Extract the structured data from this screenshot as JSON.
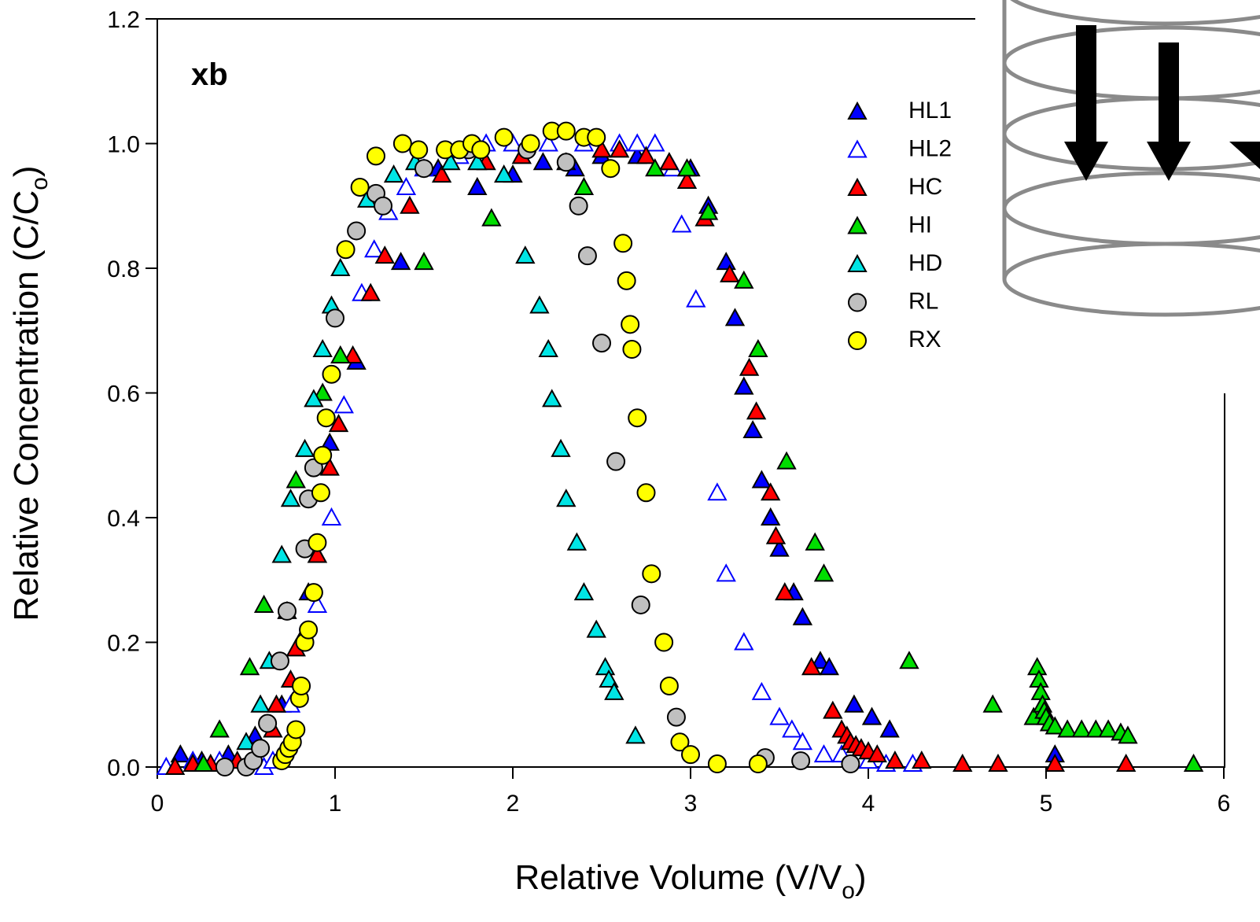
{
  "chart_data": {
    "type": "scatter",
    "annotation": "xb",
    "x_label": [
      "Relative Volume (V/V",
      "o",
      ")"
    ],
    "y_label": [
      "Relative Concentration (C/C",
      "o",
      ")"
    ],
    "xlim": [
      0,
      6
    ],
    "ylim": [
      0,
      1.2
    ],
    "xticks": [
      0,
      1,
      2,
      3,
      4,
      5,
      6
    ],
    "yticks": [
      {
        "value": 0,
        "label": "0.0"
      },
      {
        "value": 0.2,
        "label": "0.2"
      },
      {
        "value": 0.4,
        "label": "0.4"
      },
      {
        "value": 0.6,
        "label": "0.6"
      },
      {
        "value": 0.8,
        "label": "0.8"
      },
      {
        "value": 1.0,
        "label": "1.0"
      },
      {
        "value": 1.2,
        "label": "1.2"
      }
    ],
    "grid": false,
    "legend": "upper-right",
    "series": [
      {
        "name": "HL1",
        "color": "#0000ff",
        "marker": "triangle",
        "filled": true,
        "x": [
          0.13,
          0.25,
          0.4,
          0.55,
          0.7,
          0.8,
          0.85,
          0.9,
          0.97,
          1.12,
          1.37,
          1.58,
          1.8,
          2.0,
          2.17,
          2.35,
          2.5,
          2.7,
          2.88,
          3.0,
          3.1,
          3.2,
          3.25,
          3.3,
          3.35,
          3.4,
          3.45,
          3.5,
          3.58,
          3.63,
          3.73,
          3.78,
          3.92,
          4.02,
          4.12,
          5.05
        ],
        "values": [
          0.02,
          0.01,
          0.02,
          0.05,
          0.1,
          0.2,
          0.28,
          0.34,
          0.52,
          0.65,
          0.81,
          0.96,
          0.93,
          0.95,
          0.97,
          0.96,
          0.98,
          0.98,
          0.97,
          0.96,
          0.9,
          0.81,
          0.72,
          0.61,
          0.54,
          0.46,
          0.4,
          0.35,
          0.28,
          0.24,
          0.17,
          0.16,
          0.1,
          0.08,
          0.06,
          0.02
        ]
      },
      {
        "name": "HL2",
        "color": "#0000ff",
        "marker": "triangle",
        "filled": false,
        "x": [
          0.05,
          0.2,
          0.35,
          0.6,
          0.65,
          0.75,
          0.9,
          0.98,
          1.05,
          1.15,
          1.22,
          1.3,
          1.4,
          1.5,
          1.7,
          1.85,
          2.0,
          2.2,
          2.4,
          2.6,
          2.7,
          2.8,
          2.9,
          2.95,
          3.03,
          3.15,
          3.2,
          3.3,
          3.4,
          3.5,
          3.57,
          3.63,
          3.75,
          3.85,
          4.0,
          4.1,
          4.25
        ],
        "values": [
          0.0,
          0.01,
          0.01,
          0.0,
          0.01,
          0.1,
          0.26,
          0.4,
          0.58,
          0.76,
          0.83,
          0.89,
          0.93,
          0.96,
          0.98,
          1.0,
          1.0,
          1.0,
          1.0,
          1.0,
          1.0,
          1.0,
          0.96,
          0.87,
          0.75,
          0.44,
          0.31,
          0.2,
          0.12,
          0.08,
          0.06,
          0.04,
          0.02,
          0.02,
          0.01,
          0.005,
          0.005
        ]
      },
      {
        "name": "HC",
        "color": "#ff0000",
        "marker": "triangle",
        "filled": true,
        "x": [
          0.1,
          0.2,
          0.3,
          0.45,
          0.65,
          0.67,
          0.75,
          0.78,
          0.9,
          0.97,
          1.02,
          1.1,
          1.2,
          1.28,
          1.42,
          1.6,
          1.85,
          2.05,
          2.3,
          2.5,
          2.6,
          2.75,
          2.88,
          2.98,
          3.08,
          3.22,
          3.33,
          3.37,
          3.45,
          3.48,
          3.53,
          3.68,
          3.8,
          3.85,
          3.88,
          3.9,
          3.93,
          3.96,
          4.0,
          4.05,
          4.15,
          4.3,
          4.53,
          4.73,
          5.05,
          5.45
        ],
        "values": [
          0.0,
          0.005,
          0.005,
          0.01,
          0.06,
          0.1,
          0.14,
          0.19,
          0.34,
          0.48,
          0.55,
          0.66,
          0.76,
          0.82,
          0.9,
          0.95,
          0.97,
          0.98,
          0.97,
          0.99,
          0.99,
          0.98,
          0.97,
          0.94,
          0.88,
          0.79,
          0.64,
          0.57,
          0.44,
          0.37,
          0.28,
          0.16,
          0.09,
          0.06,
          0.05,
          0.04,
          0.035,
          0.03,
          0.025,
          0.02,
          0.01,
          0.01,
          0.005,
          0.005,
          0.005,
          0.005
        ]
      },
      {
        "name": "HI",
        "color": "#00dd00",
        "marker": "triangle",
        "filled": true,
        "x": [
          0.26,
          0.35,
          0.52,
          0.6,
          0.78,
          0.93,
          1.03,
          1.5,
          1.88,
          2.4,
          2.8,
          2.98,
          3.1,
          3.3,
          3.38,
          3.54,
          3.7,
          3.75,
          4.23,
          4.7,
          4.93,
          4.95,
          4.96,
          4.97,
          4.98,
          4.99,
          5.0,
          5.02,
          5.05,
          5.12,
          5.2,
          5.28,
          5.35,
          5.42,
          5.46,
          5.83
        ],
        "values": [
          0.005,
          0.06,
          0.16,
          0.26,
          0.46,
          0.6,
          0.66,
          0.81,
          0.88,
          0.93,
          0.96,
          0.96,
          0.89,
          0.78,
          0.67,
          0.49,
          0.36,
          0.31,
          0.17,
          0.1,
          0.08,
          0.16,
          0.14,
          0.12,
          0.1,
          0.09,
          0.08,
          0.07,
          0.065,
          0.06,
          0.06,
          0.06,
          0.06,
          0.055,
          0.05,
          0.005
        ]
      },
      {
        "name": "HD",
        "color": "#00e5e5",
        "marker": "triangle",
        "filled": true,
        "x": [
          0.5,
          0.58,
          0.63,
          0.7,
          0.73,
          0.75,
          0.83,
          0.88,
          0.93,
          0.98,
          1.03,
          1.18,
          1.33,
          1.45,
          1.65,
          1.8,
          1.95,
          2.07,
          2.15,
          2.2,
          2.22,
          2.27,
          2.3,
          2.36,
          2.4,
          2.47,
          2.52,
          2.54,
          2.57,
          2.69
        ],
        "values": [
          0.04,
          0.1,
          0.17,
          0.34,
          0.25,
          0.43,
          0.51,
          0.59,
          0.67,
          0.74,
          0.8,
          0.91,
          0.95,
          0.97,
          0.97,
          0.97,
          0.95,
          0.82,
          0.74,
          0.67,
          0.59,
          0.51,
          0.43,
          0.36,
          0.28,
          0.22,
          0.16,
          0.14,
          0.12,
          0.05
        ]
      },
      {
        "name": "RL",
        "color": "#c0c0c0",
        "marker": "circle",
        "filled": true,
        "x": [
          0.38,
          0.5,
          0.54,
          0.58,
          0.62,
          0.69,
          0.73,
          0.83,
          0.85,
          0.88,
          1.0,
          1.12,
          1.23,
          1.27,
          1.5,
          1.75,
          2.08,
          2.3,
          2.37,
          2.42,
          2.5,
          2.58,
          2.72,
          2.92,
          3.42,
          3.62,
          3.9
        ],
        "values": [
          0.0,
          0.0,
          0.01,
          0.03,
          0.07,
          0.17,
          0.25,
          0.35,
          0.43,
          0.48,
          0.72,
          0.86,
          0.92,
          0.9,
          0.96,
          0.99,
          0.99,
          0.97,
          0.9,
          0.82,
          0.68,
          0.49,
          0.26,
          0.08,
          0.015,
          0.01,
          0.005
        ]
      },
      {
        "name": "RX",
        "color": "#ffff00",
        "marker": "circle",
        "filled": true,
        "x": [
          0.7,
          0.72,
          0.74,
          0.76,
          0.78,
          0.8,
          0.81,
          0.83,
          0.85,
          0.88,
          0.9,
          0.92,
          0.93,
          0.95,
          0.98,
          1.06,
          1.14,
          1.23,
          1.38,
          1.47,
          1.62,
          1.7,
          1.77,
          1.82,
          1.95,
          2.1,
          2.22,
          2.3,
          2.4,
          2.47,
          2.55,
          2.62,
          2.64,
          2.66,
          2.67,
          2.7,
          2.75,
          2.78,
          2.85,
          2.88,
          2.94,
          3.0,
          3.15,
          3.38
        ],
        "values": [
          0.01,
          0.02,
          0.03,
          0.04,
          0.06,
          0.11,
          0.13,
          0.2,
          0.22,
          0.28,
          0.36,
          0.44,
          0.5,
          0.56,
          0.63,
          0.83,
          0.93,
          0.98,
          1.0,
          0.99,
          0.99,
          0.99,
          1.0,
          0.99,
          1.01,
          1.0,
          1.02,
          1.02,
          1.01,
          1.01,
          0.96,
          0.84,
          0.78,
          0.71,
          0.67,
          0.56,
          0.44,
          0.31,
          0.2,
          0.13,
          0.04,
          0.02,
          0.005,
          0.005
        ]
      }
    ]
  }
}
